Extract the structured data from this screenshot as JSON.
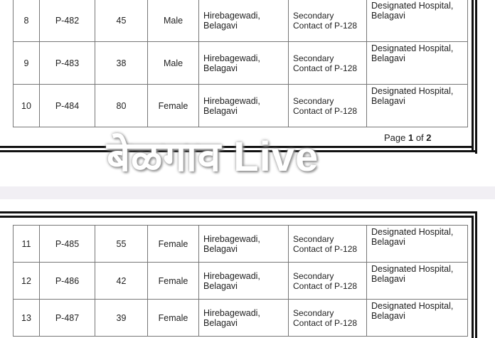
{
  "page1": {
    "rows": [
      {
        "no": "8",
        "id": "P-482",
        "age": "45",
        "sex": "Male",
        "place": [
          "Hirebagewadi,",
          "Belagavi"
        ],
        "contact": [
          "Secondary",
          "Contact of P-128"
        ],
        "facility": [
          "Designated Hospital,",
          "Belagavi"
        ]
      },
      {
        "no": "9",
        "id": "P-483",
        "age": "38",
        "sex": "Male",
        "place": [
          "Hirebagewadi,",
          "Belagavi"
        ],
        "contact": [
          "Secondary",
          "Contact of P-128"
        ],
        "facility": [
          "Designated Hospital,",
          "Belagavi"
        ]
      },
      {
        "no": "10",
        "id": "P-484",
        "age": "80",
        "sex": "Female",
        "place": [
          "Hirebagewadi,",
          "Belagavi"
        ],
        "contact": [
          "Secondary",
          "Contact of P-128"
        ],
        "facility": [
          "Designated Hospital,",
          "Belagavi"
        ]
      }
    ],
    "footer": {
      "prefix": "Page ",
      "current": "1",
      "mid": " of ",
      "total": "2"
    }
  },
  "watermark": "बेळगाव Live",
  "page2": {
    "rows": [
      {
        "no": "11",
        "id": "P-485",
        "age": "55",
        "sex": "Female",
        "place": [
          "Hirebagewadi,",
          "Belagavi"
        ],
        "contact": [
          "Secondary",
          "Contact of P-128"
        ],
        "facility": [
          "Designated Hospital,",
          "Belagavi"
        ]
      },
      {
        "no": "12",
        "id": "P-486",
        "age": "42",
        "sex": "Female",
        "place": [
          "Hirebagewadi,",
          "Belagavi"
        ],
        "contact": [
          "Secondary",
          "Contact of P-128"
        ],
        "facility": [
          "Designated Hospital,",
          "Belagavi"
        ]
      },
      {
        "no": "13",
        "id": "P-487",
        "age": "39",
        "sex": "Female",
        "place": [
          "Hirebagewadi,",
          "Belagavi"
        ],
        "contact": [
          "Secondary",
          "Contact of P-128"
        ],
        "facility": [
          "Designated Hospital,",
          "Belagavi"
        ]
      }
    ]
  }
}
